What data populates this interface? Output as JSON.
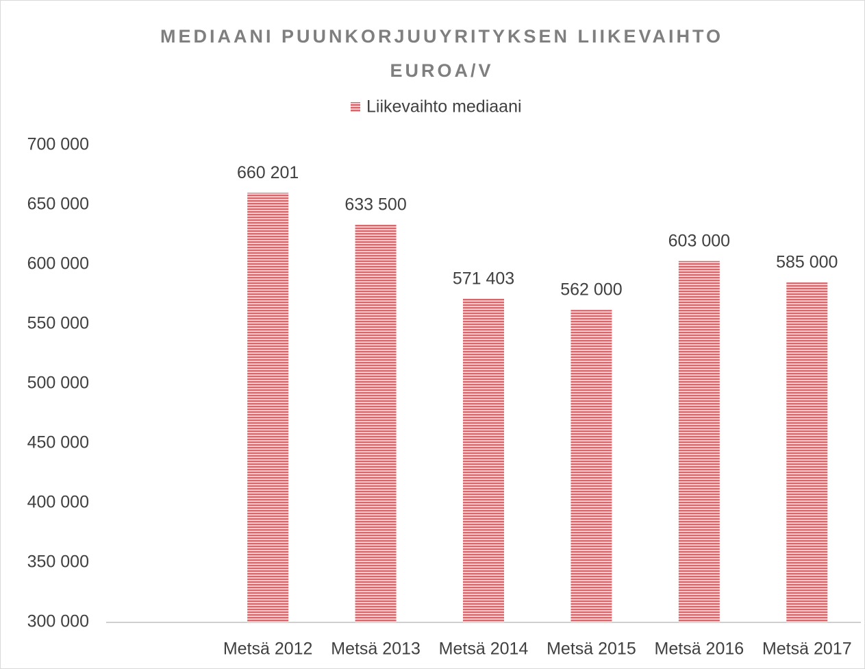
{
  "chart_data": {
    "type": "bar",
    "title": "MEDIAANI PUUNKORJUUYRITYKSEN LIIKEVAIHTO EUROA/V",
    "categories": [
      null,
      "Metsä 2012",
      "Metsä 2013",
      "Metsä 2014",
      "Metsä 2015",
      "Metsä 2016",
      "Metsä 2017"
    ],
    "series": [
      {
        "name": "Liikevaihto mediaani",
        "color": "#d9666a",
        "values": [
          null,
          660201,
          633500,
          571403,
          562000,
          603000,
          585000
        ],
        "value_labels": [
          null,
          "660 201",
          "633 500",
          "571 403",
          "562 000",
          "603 000",
          "585 000"
        ]
      }
    ],
    "ylim": [
      300000,
      700000
    ],
    "yticks": [
      {
        "value": 300000,
        "label": "300 000"
      },
      {
        "value": 350000,
        "label": "350 000"
      },
      {
        "value": 400000,
        "label": "400 000"
      },
      {
        "value": 450000,
        "label": "450 000"
      },
      {
        "value": 500000,
        "label": "500 000"
      },
      {
        "value": 550000,
        "label": "550 000"
      },
      {
        "value": 600000,
        "label": "600 000"
      },
      {
        "value": 650000,
        "label": "650 000"
      },
      {
        "value": 700000,
        "label": "700 000"
      }
    ],
    "grid": false,
    "legend": "top"
  }
}
